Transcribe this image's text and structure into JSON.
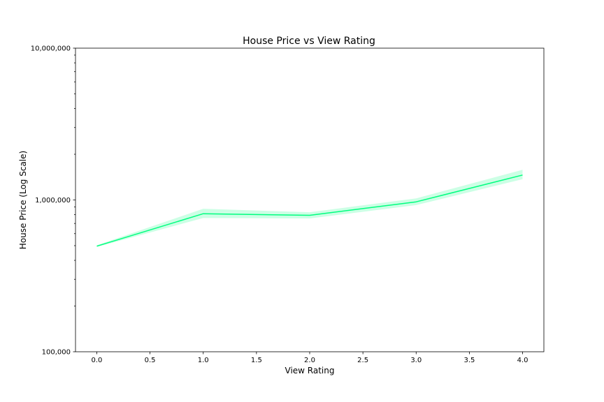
{
  "chart_data": {
    "type": "line",
    "title": "House Price vs View Rating",
    "xlabel": "View Rating",
    "ylabel": "House Price (Log Scale)",
    "x_scale": "linear",
    "y_scale": "log",
    "xlim": [
      -0.2,
      4.2
    ],
    "ylim": [
      100000,
      10000000
    ],
    "x_ticks": [
      0.0,
      0.5,
      1.0,
      1.5,
      2.0,
      2.5,
      3.0,
      3.5,
      4.0
    ],
    "x_tick_labels": [
      "0.0",
      "0.5",
      "1.0",
      "1.5",
      "2.0",
      "2.5",
      "3.0",
      "3.5",
      "4.0"
    ],
    "y_ticks": [
      100000,
      1000000,
      10000000
    ],
    "y_tick_labels": [
      "100,000",
      "1,000,000",
      "10,000,000"
    ],
    "grid": false,
    "series": [
      {
        "x": [
          0,
          1,
          2,
          3,
          4
        ],
        "values": [
          496000,
          812000,
          792000,
          972000,
          1460000
        ],
        "ci_lower": [
          490000,
          760000,
          755000,
          925000,
          1370000
        ],
        "ci_upper": [
          503000,
          875000,
          830000,
          1025000,
          1580000
        ],
        "color": "#00ff7f",
        "band_color": "#00ff7f"
      }
    ]
  }
}
